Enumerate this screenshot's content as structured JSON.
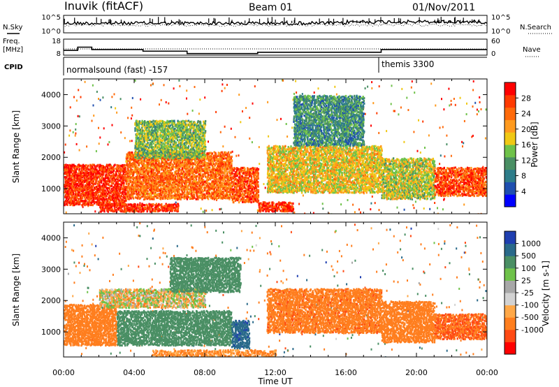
{
  "header": {
    "station": "Inuvik (fitACF)",
    "beam": "Beam 01",
    "date": "01/Nov/2011"
  },
  "strip_noise": {
    "left_label": "N.Sky",
    "right_label": "N.Search",
    "left_ticks": [
      "10^5",
      "10^0"
    ],
    "right_ticks": [
      "10^5",
      "10^0"
    ]
  },
  "strip_freq": {
    "left_label_1": "Freq.",
    "left_label_2": "[MHz]",
    "right_label": "Nave",
    "left_ticks": [
      "18",
      "8"
    ],
    "right_ticks": [
      "60",
      "0"
    ],
    "freq_steps": [
      {
        "t": 0.0,
        "v": 11.0
      },
      {
        "t": 0.8,
        "v": 13.0
      },
      {
        "t": 1.6,
        "v": 11.5
      },
      {
        "t": 4.5,
        "v": 10.5
      },
      {
        "t": 7.0,
        "v": 9.0
      },
      {
        "t": 11.0,
        "v": 9.8
      },
      {
        "t": 18.0,
        "v": 11.5
      },
      {
        "t": 24.0,
        "v": 11.5
      }
    ]
  },
  "cpid": {
    "label": "CPID",
    "segments": [
      {
        "start": 0,
        "end": 18,
        "text": "normalsound (fast) -157"
      },
      {
        "start": 18,
        "end": 24,
        "text": "themis 3300"
      }
    ]
  },
  "colors": {
    "power_scale": [
      "#0000ff",
      "#1f4fb0",
      "#2e7d8a",
      "#4a8f64",
      "#6fc24a",
      "#f0c814",
      "#ff9a1e",
      "#ff6a0a",
      "#ff3a00",
      "#ff0000"
    ],
    "velocity_scale": [
      "#ff0000",
      "#ff4a14",
      "#ff7e1e",
      "#ffa848",
      "#d2d2d2",
      "#a8a8a8",
      "#6fc24a",
      "#4a8f64",
      "#2a6a8a",
      "#1f3fb0"
    ]
  },
  "chart_data": [
    {
      "type": "heatmap",
      "panel": "power",
      "xlabel": "",
      "ylabel": "Slant Range [km]",
      "xlim": [
        0,
        24
      ],
      "ylim": [
        200,
        4500
      ],
      "y_ticks": [
        1000,
        2000,
        3000,
        4000
      ],
      "colorbar": {
        "label": "Power [dB]",
        "ticks": [
          "4",
          "8",
          "12",
          "16",
          "20",
          "24",
          "28"
        ],
        "range": [
          0,
          32
        ]
      },
      "regions": [
        {
          "t0": 0.0,
          "t1": 3.5,
          "r0": 500,
          "r1": 1800,
          "value": 28
        },
        {
          "t0": 3.5,
          "t1": 9.5,
          "r0": 700,
          "r1": 2200,
          "value": 24
        },
        {
          "t0": 9.5,
          "t1": 11.0,
          "r0": 600,
          "r1": 1700,
          "value": 26
        },
        {
          "t0": 2.0,
          "t1": 6.5,
          "r0": 300,
          "r1": 550,
          "value": 28
        },
        {
          "t0": 11.0,
          "t1": 13.0,
          "r0": 300,
          "r1": 600,
          "value": 28
        },
        {
          "t0": 11.5,
          "t1": 18.0,
          "r0": 900,
          "r1": 2400,
          "value": 18
        },
        {
          "t0": 18.0,
          "t1": 21.0,
          "r0": 700,
          "r1": 2000,
          "value": 16
        },
        {
          "t0": 21.0,
          "t1": 24.0,
          "r0": 800,
          "r1": 1700,
          "value": 26
        },
        {
          "t0": 4.0,
          "t1": 8.0,
          "r0": 2000,
          "r1": 3200,
          "value": 14
        },
        {
          "t0": 13.0,
          "t1": 17.0,
          "r0": 2400,
          "r1": 4000,
          "value": 10
        }
      ]
    },
    {
      "type": "heatmap",
      "panel": "velocity",
      "xlabel": "Time UT",
      "ylabel": "Slant Range [km]",
      "xlim": [
        0,
        24
      ],
      "ylim": [
        200,
        4500
      ],
      "x_ticks": [
        "00:00",
        "04:00",
        "08:00",
        "12:00",
        "16:00",
        "20:00",
        "00:00"
      ],
      "y_ticks": [
        1000,
        2000,
        3000,
        4000
      ],
      "colorbar": {
        "label": "Velocity [m s-1]",
        "ticks": [
          "1000",
          "500",
          "100",
          "25",
          "-25",
          "-100",
          "-500",
          "-1000"
        ],
        "range": [
          -1200,
          1200
        ]
      },
      "regions": [
        {
          "t0": 0.0,
          "t1": 3.0,
          "r0": 600,
          "r1": 1900,
          "value": -300
        },
        {
          "t0": 3.0,
          "t1": 9.5,
          "r0": 600,
          "r1": 1700,
          "value": 300
        },
        {
          "t0": 9.5,
          "t1": 10.5,
          "r0": 500,
          "r1": 1400,
          "value": 900
        },
        {
          "t0": 2.0,
          "t1": 8.0,
          "r0": 1800,
          "r1": 2400,
          "value": -20
        },
        {
          "t0": 11.5,
          "t1": 18.0,
          "r0": 1000,
          "r1": 2400,
          "value": -400
        },
        {
          "t0": 18.0,
          "t1": 21.0,
          "r0": 700,
          "r1": 2000,
          "value": -250
        },
        {
          "t0": 21.0,
          "t1": 24.0,
          "r0": 800,
          "r1": 1600,
          "value": -500
        },
        {
          "t0": 6.0,
          "t1": 10.0,
          "r0": 2300,
          "r1": 3400,
          "value": 250
        },
        {
          "t0": 5.0,
          "t1": 12.0,
          "r0": 250,
          "r1": 450,
          "value": -150
        }
      ]
    }
  ]
}
